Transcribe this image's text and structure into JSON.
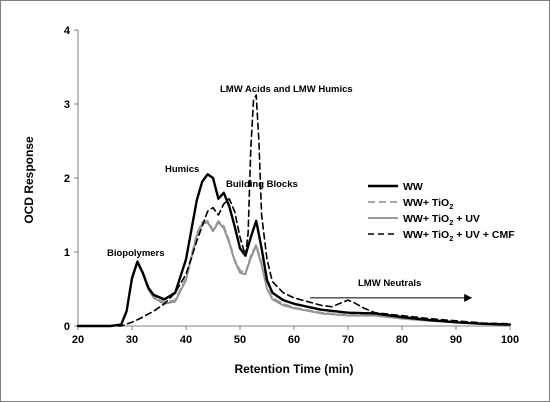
{
  "chart_data": {
    "type": "line",
    "title": "",
    "xlabel": "Retention Time (min)",
    "ylabel": "OCD Response",
    "xlim": [
      20,
      100
    ],
    "ylim": [
      0,
      4
    ],
    "xticks": [
      20,
      30,
      40,
      50,
      60,
      70,
      80,
      90,
      100
    ],
    "yticks": [
      0,
      1,
      2,
      3,
      4
    ],
    "grid": false,
    "legend_position": "right",
    "legend": [
      {
        "label": "WW",
        "color": "#000000",
        "style": "solid-thick"
      },
      {
        "label_main": "WW+ TiO",
        "label_sub": "2",
        "label_after": "",
        "color": "#9a9a9a",
        "style": "dashed"
      },
      {
        "label_main": "WW+ TiO",
        "label_sub": "2",
        "label_after": " + UV",
        "color": "#8c8c8c",
        "style": "solid"
      },
      {
        "label_main": "WW+ TiO",
        "label_sub": "2",
        "label_after": " + UV + CMF",
        "color": "#000000",
        "style": "dashed"
      }
    ],
    "annotations": {
      "biopolymers": "Biopolymers",
      "humics": "Humics",
      "building_blocks": "Building Blocks",
      "lmw_acids": "LMW Acids and LMW Humics",
      "lmw_neutrals": "LMW Neutrals"
    },
    "arrow": {
      "x_start": 63,
      "x_end": 93,
      "y": 0.38
    },
    "series": [
      {
        "name": "WW",
        "color": "#000000",
        "width": 2.4,
        "dash": "",
        "x": [
          20,
          26,
          28,
          29,
          30,
          31,
          32,
          33,
          34,
          36,
          38,
          40,
          41,
          42,
          43,
          44,
          45,
          46,
          47,
          48,
          49,
          50,
          51,
          52,
          53,
          54,
          55,
          56,
          58,
          60,
          65,
          70,
          75,
          80,
          85,
          90,
          95,
          100
        ],
        "y": [
          0.0,
          0.0,
          0.02,
          0.2,
          0.65,
          0.87,
          0.72,
          0.52,
          0.42,
          0.36,
          0.45,
          0.9,
          1.3,
          1.7,
          1.95,
          2.05,
          2.0,
          1.72,
          1.8,
          1.62,
          1.35,
          1.05,
          0.95,
          1.2,
          1.42,
          1.05,
          0.62,
          0.45,
          0.35,
          0.3,
          0.22,
          0.18,
          0.17,
          0.12,
          0.08,
          0.05,
          0.03,
          0.02
        ]
      },
      {
        "name": "WW+ TiO2",
        "color": "#9a9a9a",
        "width": 1.8,
        "dash": "7,4",
        "x": [
          20,
          26,
          28,
          29,
          30,
          31,
          32,
          33,
          34,
          36,
          38,
          40,
          41,
          42,
          43,
          44,
          45,
          46,
          47,
          48,
          49,
          50,
          51,
          52,
          53,
          54,
          55,
          56,
          58,
          60,
          65,
          70,
          75,
          80,
          85,
          90,
          95,
          100
        ],
        "y": [
          0.0,
          0.0,
          0.02,
          0.2,
          0.65,
          0.87,
          0.72,
          0.52,
          0.4,
          0.32,
          0.35,
          0.65,
          0.95,
          1.25,
          1.4,
          1.42,
          1.3,
          1.42,
          1.35,
          1.15,
          0.9,
          0.75,
          0.72,
          0.95,
          1.1,
          0.85,
          0.52,
          0.38,
          0.3,
          0.25,
          0.18,
          0.15,
          0.15,
          0.1,
          0.07,
          0.05,
          0.03,
          0.02
        ]
      },
      {
        "name": "WW+ TiO2 + UV",
        "color": "#8c8c8c",
        "width": 1.8,
        "dash": "",
        "x": [
          20,
          26,
          28,
          29,
          30,
          31,
          32,
          33,
          34,
          36,
          38,
          40,
          41,
          42,
          43,
          44,
          45,
          46,
          47,
          48,
          49,
          50,
          51,
          52,
          53,
          54,
          55,
          56,
          58,
          60,
          65,
          70,
          75,
          80,
          85,
          90,
          95,
          100
        ],
        "y": [
          0.0,
          0.0,
          0.02,
          0.2,
          0.62,
          0.85,
          0.7,
          0.5,
          0.38,
          0.3,
          0.33,
          0.62,
          0.92,
          1.22,
          1.38,
          1.4,
          1.28,
          1.4,
          1.32,
          1.12,
          0.88,
          0.72,
          0.7,
          0.92,
          1.08,
          0.82,
          0.5,
          0.36,
          0.28,
          0.24,
          0.17,
          0.14,
          0.14,
          0.1,
          0.07,
          0.05,
          0.03,
          0.02
        ]
      },
      {
        "name": "WW+ TiO2 + UV + CMF",
        "color": "#000000",
        "width": 1.6,
        "dash": "6,4",
        "x": [
          20,
          28,
          30,
          32,
          34,
          36,
          38,
          40,
          41,
          42,
          43,
          44,
          45,
          46,
          47,
          48,
          49,
          50,
          51,
          51.5,
          52,
          52.5,
          53,
          53.5,
          54,
          55,
          56,
          58,
          60,
          65,
          67,
          69,
          70,
          71,
          73,
          75,
          80,
          85,
          90,
          95,
          100
        ],
        "y": [
          0.0,
          0.0,
          0.05,
          0.12,
          0.2,
          0.3,
          0.45,
          0.7,
          0.92,
          1.15,
          1.35,
          1.55,
          1.6,
          1.5,
          1.65,
          1.72,
          1.55,
          1.2,
          0.95,
          1.25,
          2.4,
          3.05,
          3.12,
          2.5,
          1.5,
          0.9,
          0.6,
          0.45,
          0.38,
          0.28,
          0.26,
          0.32,
          0.35,
          0.32,
          0.24,
          0.18,
          0.14,
          0.1,
          0.07,
          0.04,
          0.03
        ]
      }
    ]
  }
}
